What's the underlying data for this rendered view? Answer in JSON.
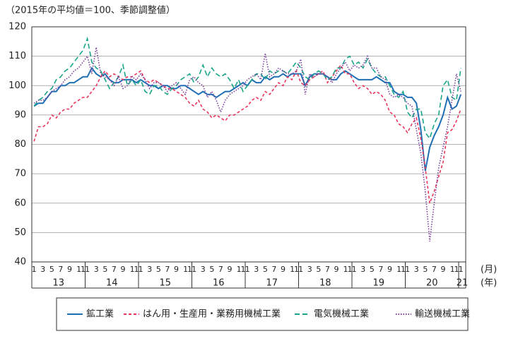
{
  "chart_data": {
    "type": "line",
    "title": "（2015年の平均値＝100、季節調整値）",
    "categories": [
      "1",
      null,
      "3",
      null,
      "5",
      null,
      "7",
      null,
      "9",
      null,
      "11",
      null,
      "1",
      null,
      "3",
      null,
      "5",
      null,
      "7",
      null,
      "9",
      null,
      "11",
      null,
      "1",
      null,
      "3",
      null,
      "5",
      null,
      "7",
      null,
      "9",
      null,
      "11",
      null,
      "1",
      null,
      "3",
      null,
      "5",
      null,
      "7",
      null,
      "9",
      null,
      "11",
      null,
      "1",
      null,
      "3",
      null,
      "5",
      null,
      "7",
      null,
      "9",
      null,
      "11",
      null,
      "1",
      null,
      "3",
      null,
      "5",
      null,
      "7",
      null,
      "9",
      null,
      "11",
      null,
      "1",
      null,
      "3",
      null,
      "5",
      null,
      "7",
      null,
      "9",
      null,
      "11",
      null,
      "1",
      null,
      "3",
      null,
      "5",
      null,
      "7",
      null,
      "9",
      null,
      "11",
      null,
      "1"
    ],
    "year_labels": [
      "13",
      "14",
      "15",
      "16",
      "17",
      "18",
      "19",
      "20",
      "21"
    ],
    "month_unit": "(月)",
    "year_unit": "(年)",
    "ylim": [
      40,
      120
    ],
    "yticks": [
      40,
      50,
      60,
      70,
      80,
      90,
      100,
      110,
      120
    ],
    "grid": true,
    "legend": "bottom",
    "series": [
      {
        "name": "鉱工業",
        "color": "#1f6fb5",
        "style": "solid",
        "values": [
          93,
          94,
          94,
          96,
          98,
          98,
          100,
          100,
          101,
          101,
          102,
          103,
          103,
          106,
          104,
          103,
          104,
          102,
          101,
          101,
          102,
          102,
          102,
          101,
          102,
          101,
          100,
          100,
          99,
          100,
          100,
          99,
          99,
          100,
          100,
          99,
          98,
          97,
          98,
          97,
          97,
          96,
          97,
          98,
          98,
          99,
          100,
          101,
          100,
          102,
          101,
          101,
          103,
          102,
          103,
          103,
          104,
          103,
          104,
          104,
          104,
          100,
          103,
          104,
          104,
          104,
          103,
          102,
          102,
          104,
          105,
          104,
          103,
          102,
          102,
          102,
          102,
          103,
          102,
          101,
          101,
          98,
          97,
          97,
          96,
          96,
          94,
          85,
          71,
          79,
          83,
          86,
          90,
          96,
          92,
          93,
          97
        ]
      },
      {
        "name": "はん用・生産用・業務用機械工業",
        "color": "#e8365d",
        "style": "dashed",
        "values": [
          81,
          86,
          86,
          87,
          90,
          89,
          91,
          92,
          92,
          94,
          95,
          96,
          96,
          98,
          100,
          103,
          105,
          103,
          104,
          103,
          102,
          103,
          103,
          104,
          105,
          102,
          101,
          102,
          101,
          100,
          99,
          99,
          98,
          97,
          96,
          94,
          93,
          95,
          92,
          91,
          89,
          90,
          89,
          88,
          90,
          90,
          91,
          92,
          93,
          95,
          96,
          95,
          98,
          97,
          99,
          101,
          100,
          103,
          102,
          105,
          101,
          100,
          102,
          103,
          104,
          105,
          101,
          103,
          105,
          107,
          104,
          104,
          101,
          99,
          100,
          99,
          97,
          98,
          97,
          95,
          91,
          90,
          87,
          86,
          84,
          87,
          89,
          82,
          72,
          60,
          64,
          69,
          74,
          84,
          85,
          88,
          92
        ]
      },
      {
        "name": "電気機械工業",
        "color": "#1aa58a",
        "style": "longdash",
        "values": [
          93,
          95,
          96,
          98,
          99,
          102,
          103,
          105,
          106,
          108,
          110,
          112,
          116,
          108,
          106,
          105,
          102,
          99,
          101,
          103,
          107,
          100,
          102,
          100,
          102,
          98,
          97,
          100,
          100,
          98,
          97,
          99,
          100,
          102,
          103,
          104,
          101,
          103,
          107,
          103,
          106,
          104,
          103,
          104,
          102,
          99,
          102,
          98,
          100,
          102,
          104,
          104,
          102,
          105,
          104,
          105,
          105,
          104,
          106,
          108,
          106,
          103,
          102,
          104,
          105,
          104,
          102,
          103,
          106,
          106,
          109,
          110,
          107,
          108,
          106,
          109,
          106,
          104,
          103,
          103,
          100,
          97,
          96,
          98,
          91,
          89,
          92,
          92,
          84,
          82,
          87,
          90,
          100,
          102,
          96,
          95,
          106
        ]
      },
      {
        "name": "輸送機械工業",
        "color": "#7b3f9e",
        "style": "dotted",
        "values": [
          94,
          95,
          95,
          96,
          98,
          99,
          100,
          102,
          103,
          105,
          106,
          108,
          110,
          104,
          113,
          104,
          103,
          102,
          100,
          103,
          99,
          100,
          103,
          102,
          104,
          102,
          99,
          101,
          101,
          100,
          98,
          100,
          101,
          99,
          97,
          102,
          103,
          101,
          100,
          96,
          98,
          95,
          91,
          95,
          97,
          98,
          99,
          100,
          102,
          103,
          104,
          102,
          111,
          103,
          104,
          106,
          105,
          104,
          104,
          105,
          109,
          97,
          104,
          103,
          104,
          104,
          103,
          101,
          104,
          106,
          108,
          105,
          107,
          106,
          107,
          110,
          106,
          106,
          103,
          102,
          97,
          96,
          97,
          96,
          94,
          93,
          85,
          77,
          64,
          47,
          60,
          72,
          79,
          86,
          95,
          104,
          98
        ]
      }
    ]
  }
}
